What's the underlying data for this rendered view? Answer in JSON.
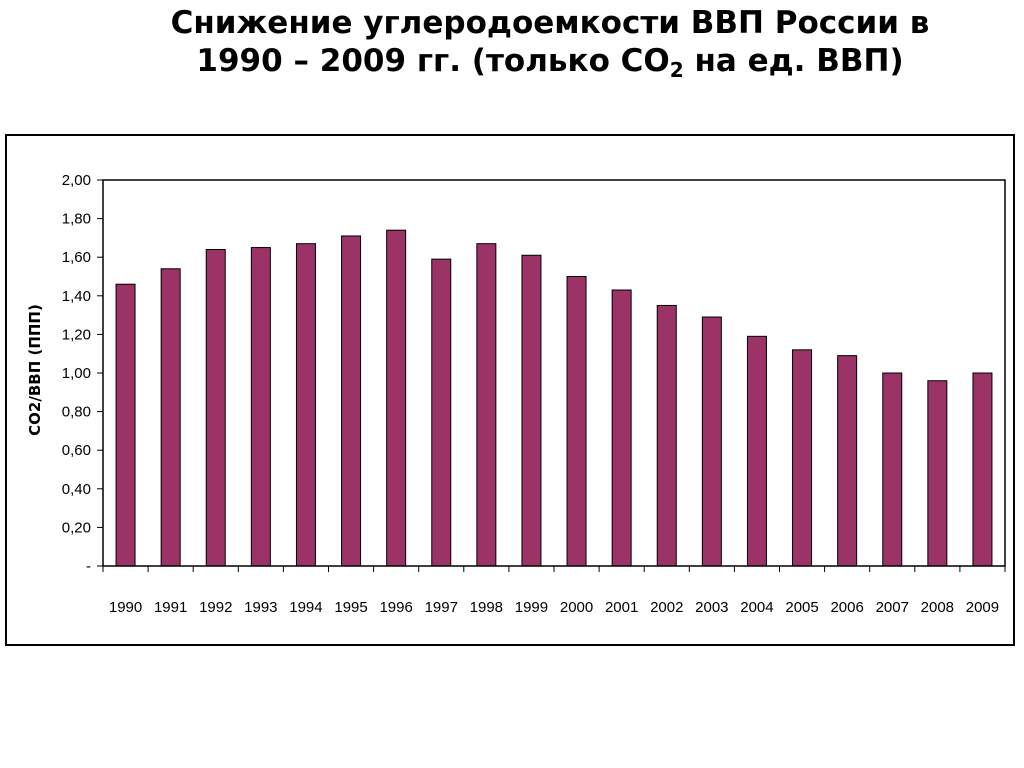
{
  "slide": {
    "title_line1": "Снижение углеродоемкости ВВП России в",
    "title_line2_pre": "1990 – 2009 гг. (только CO",
    "title_line2_sub": "2",
    "title_line2_post": " на ед. ВВП)"
  },
  "chart_data": {
    "type": "bar",
    "title": "",
    "xlabel": "",
    "ylabel": "CO2/ВВП (ППП)",
    "categories": [
      "1990",
      "1991",
      "1992",
      "1993",
      "1994",
      "1995",
      "1996",
      "1997",
      "1998",
      "1999",
      "2000",
      "2001",
      "2002",
      "2003",
      "2004",
      "2005",
      "2006",
      "2007",
      "2008",
      "2009"
    ],
    "values": [
      1.46,
      1.54,
      1.64,
      1.65,
      1.67,
      1.71,
      1.74,
      1.59,
      1.67,
      1.61,
      1.5,
      1.43,
      1.35,
      1.29,
      1.19,
      1.12,
      1.09,
      1.0,
      0.96,
      1.0
    ],
    "ylim": [
      0,
      2
    ],
    "yticks": [
      0,
      0.2,
      0.4,
      0.6,
      0.8,
      1.0,
      1.2,
      1.4,
      1.6,
      1.8,
      2.0
    ],
    "ytick_labels": [
      "-",
      "0,20",
      "0,40",
      "0,60",
      "0,80",
      "1,00",
      "1,20",
      "1,40",
      "1,60",
      "1,80",
      "2,00"
    ],
    "grid": false,
    "legend": "none",
    "bar_color": "#9b3366"
  }
}
